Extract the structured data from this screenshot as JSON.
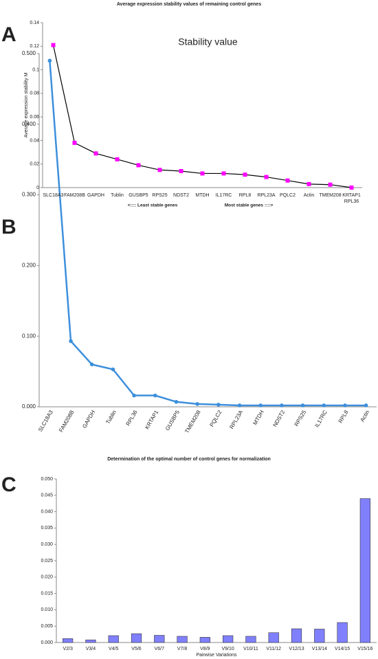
{
  "chart_data": [
    {
      "type": "line",
      "panel": "A",
      "title": "Average expression stability values of remaining control genes",
      "ylabel": "Average expression stability M",
      "annotations": [
        "<:::: Least stable genes",
        "Most stable genes ::::>"
      ],
      "categories": [
        "SLC18A3",
        "FAM208B",
        "GAPDH",
        "Tublin",
        "GUSBP5",
        "RPS25",
        "NDST2",
        "MTDH",
        "IL17RC",
        "RPL8",
        "RPL23A",
        "PQLC2",
        "Actin",
        "TMEM208",
        "KRTAP1\nRPL36"
      ],
      "values": [
        0.121,
        0.038,
        0.029,
        0.024,
        0.019,
        0.015,
        0.014,
        0.012,
        0.012,
        0.011,
        0.009,
        0.006,
        0.003,
        0.0025,
        0
      ],
      "color": "#000000",
      "marker": "square",
      "marker_color": "#ff00ff",
      "ylim": [
        0,
        0.14
      ],
      "yticks": [
        0,
        0.02,
        0.04,
        0.06,
        0.08,
        0.1,
        0.12,
        0.14
      ]
    },
    {
      "type": "line",
      "panel": "B",
      "title": "Stability value",
      "categories": [
        "SLC18A3",
        "FAM208B",
        "GAPDH",
        "Tublin",
        "RPL36",
        "KRTAP1",
        "GUSBP5",
        "TMEM208",
        "PQLC2",
        "RPL23A",
        "MTDH",
        "NDST2",
        "RPS25",
        "IL17RC",
        "RPL8",
        "Actin"
      ],
      "values": [
        0.49,
        0.093,
        0.06,
        0.053,
        0.016,
        0.016,
        0.007,
        0.004,
        0.003,
        0.002,
        0.002,
        0.002,
        0.002,
        0.002,
        0.002,
        0.002
      ],
      "color": "#3c8fdc",
      "marker": "circle",
      "marker_color": "#3c8fdc",
      "ylim": [
        0,
        0.5
      ],
      "yticks": [
        {
          "value": 0,
          "label": "0.000"
        },
        {
          "value": 0.1,
          "label": "0.100"
        },
        {
          "value": 0.2,
          "label": "0.200"
        },
        {
          "value": 0.3,
          "label": "0.300"
        },
        {
          "value": 0.4,
          "label": "0.400"
        },
        {
          "value": 0.5,
          "label": "0.500"
        }
      ]
    },
    {
      "type": "bar",
      "panel": "C",
      "title": "Determination of the optimal number of control genes for normalization",
      "xlabel": "Pairwise Variations",
      "categories": [
        "V2/3",
        "V3/4",
        "V4/5",
        "V5/6",
        "V6/7",
        "V7/8",
        "V8/9",
        "V9/10",
        "V10/11",
        "V11/12",
        "V12/13",
        "V13/14",
        "V14/15",
        "V15/16"
      ],
      "values": [
        0.0012,
        0.0008,
        0.0021,
        0.0027,
        0.0022,
        0.0019,
        0.0016,
        0.0021,
        0.0019,
        0.003,
        0.0042,
        0.0041,
        0.0061,
        0.044
      ],
      "color": "#8080ff",
      "ylim": [
        0,
        0.05
      ],
      "yticks": [
        {
          "value": 0,
          "label": "0.000"
        },
        {
          "value": 0.005,
          "label": "0.005"
        },
        {
          "value": 0.01,
          "label": "0.010"
        },
        {
          "value": 0.015,
          "label": "0.015"
        },
        {
          "value": 0.02,
          "label": "0.020"
        },
        {
          "value": 0.025,
          "label": "0.025"
        },
        {
          "value": 0.03,
          "label": "0.030"
        },
        {
          "value": 0.035,
          "label": "0.035"
        },
        {
          "value": 0.04,
          "label": "0.040"
        },
        {
          "value": 0.045,
          "label": "0.045"
        },
        {
          "value": 0.05,
          "label": "0.050"
        }
      ]
    }
  ]
}
